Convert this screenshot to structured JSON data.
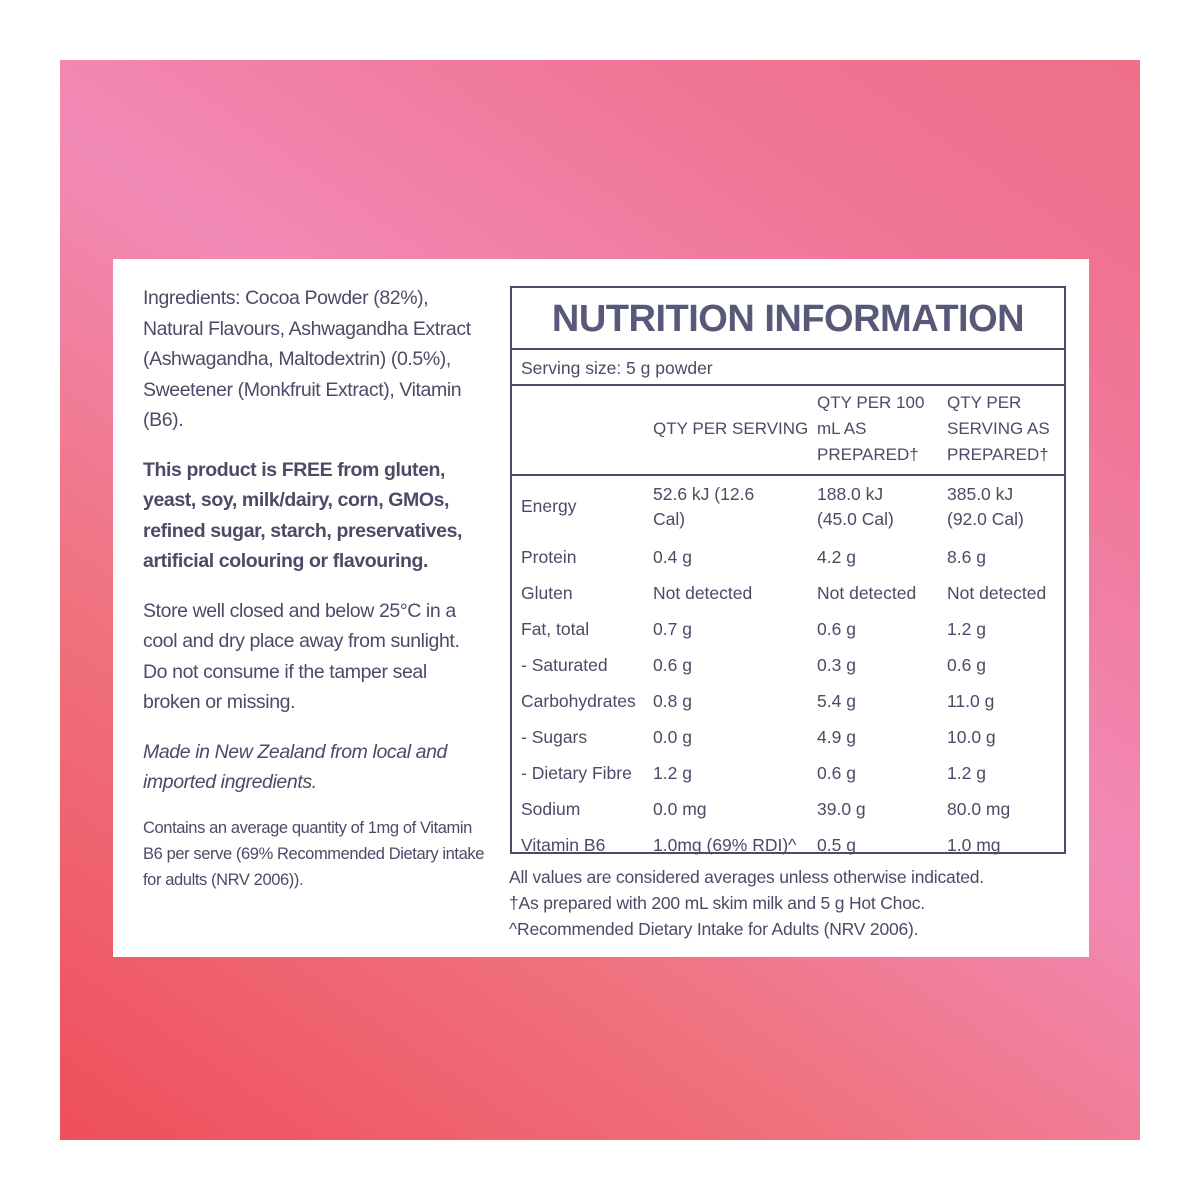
{
  "colors": {
    "text": "#4b4b67",
    "gradient_start": "#ee4f5b",
    "gradient_mid": "#f28ab6",
    "gradient_end": "#ef6f8a"
  },
  "left": {
    "ingredients": "Ingredients: Cocoa Powder (82%), Natural Flavours, Ashwagandha Extract (Ashwagandha, Maltodextrin) (0.5%), Sweetener (Monkfruit Extract), Vitamin (B6).",
    "free_from": "This product is FREE from gluten, yeast, soy, milk/dairy, corn, GMOs, refined sugar, starch, preservatives, artificial colouring or flavouring.",
    "storage": "Store well closed and below 25°C in a cool and dry place away from sunlight. Do not consume if the tamper seal broken or missing.",
    "origin": "Made in New Zealand from local and imported ingredients.",
    "vitamin_note": "Contains an average quantity of 1mg of Vitamin B6 per serve (69% Recommended Dietary intake for adults (NRV 2006))."
  },
  "nutrition": {
    "title": "NUTRITION INFORMATION",
    "serving_size": "Serving size: 5 g powder",
    "headers": [
      "",
      "QTY PER SERVING",
      "QTY PER 100 mL AS PREPARED†",
      "QTY PER SERVING AS PREPARED†"
    ],
    "rows": [
      [
        "Energy",
        "52.6 kJ (12.6 Cal)",
        "188.0 kJ (45.0 Cal)",
        "385.0 kJ (92.0 Cal)"
      ],
      [
        "Protein",
        "0.4 g",
        "4.2 g",
        "8.6 g"
      ],
      [
        "Gluten",
        "Not detected",
        "Not detected",
        "Not detected"
      ],
      [
        "Fat, total",
        "0.7 g",
        "0.6 g",
        "1.2 g"
      ],
      [
        "- Saturated",
        "0.6 g",
        "0.3 g",
        "0.6 g"
      ],
      [
        "Carbohydrates",
        "0.8 g",
        "5.4 g",
        "11.0 g"
      ],
      [
        "- Sugars",
        "0.0 g",
        "4.9 g",
        "10.0 g"
      ],
      [
        "- Dietary Fibre",
        "1.2 g",
        "0.6 g",
        "1.2 g"
      ],
      [
        "Sodium",
        "0.0 mg",
        "39.0 g",
        "80.0 mg"
      ],
      [
        "Vitamin B6",
        "1.0mg (69% RDI)^",
        "0.5 g",
        "1.0 mg"
      ]
    ],
    "notes": [
      "All values are considered averages unless otherwise indicated.",
      "†As prepared with 200 mL skim milk and 5 g Hot Choc.",
      "^Recommended Dietary Intake for Adults (NRV 2006)."
    ]
  }
}
